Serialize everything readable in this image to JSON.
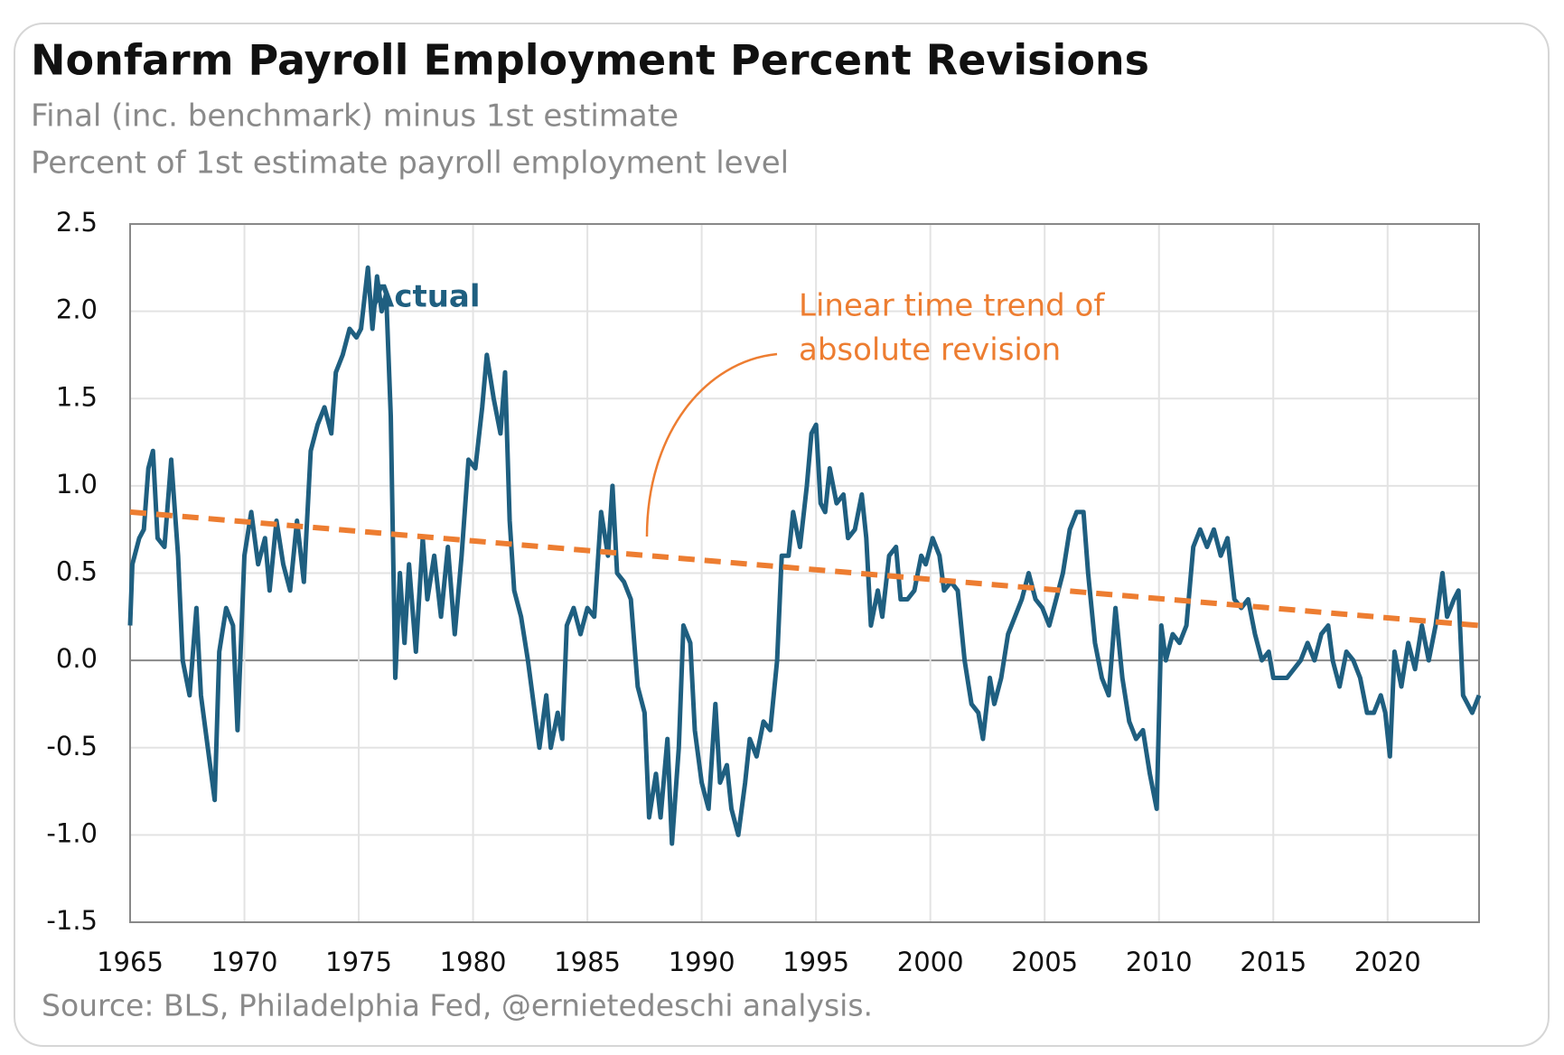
{
  "chart_data": {
    "type": "line",
    "title": "Nonfarm Payroll Employment Percent Revisions",
    "subtitle": [
      "Final (inc. benchmark) minus 1st estimate",
      "Percent of 1st estimate payroll employment level"
    ],
    "source": "Source: BLS, Philadelphia Fed, @ernietedeschi analysis.",
    "annotations": {
      "actual": "Actual",
      "trend": [
        "Linear time trend of",
        "absolute revision"
      ]
    },
    "xlim": [
      1965,
      2024
    ],
    "xticks": [
      1965,
      1970,
      1975,
      1980,
      1985,
      1990,
      1995,
      2000,
      2005,
      2010,
      2015,
      2020
    ],
    "ylim": [
      -1.5,
      2.5
    ],
    "yticks": [
      -1.5,
      {
        "value": -1,
        "label": "-1.0"
      },
      -0.5,
      {
        "value": 0,
        "label": "0.0"
      },
      0.5,
      {
        "value": 1,
        "label": "1.0"
      },
      1.5,
      {
        "value": 2,
        "label": "2.0"
      },
      2.5
    ],
    "grid": true,
    "series": [
      {
        "name": "Actual",
        "color": "#1f5f80",
        "x": [
          1965.0,
          1965.1,
          1965.4,
          1965.6,
          1965.8,
          1966.0,
          1966.2,
          1966.5,
          1966.8,
          1967.1,
          1967.3,
          1967.6,
          1967.9,
          1968.1,
          1968.4,
          1968.7,
          1968.9,
          1969.2,
          1969.5,
          1969.7,
          1970.0,
          1970.3,
          1970.6,
          1970.9,
          1971.1,
          1971.4,
          1971.7,
          1972.0,
          1972.3,
          1972.6,
          1972.9,
          1973.2,
          1973.5,
          1973.8,
          1974.0,
          1974.3,
          1974.6,
          1974.9,
          1975.1,
          1975.4,
          1975.6,
          1975.8,
          1976.0,
          1976.2,
          1976.4,
          1976.6,
          1976.8,
          1977.0,
          1977.2,
          1977.5,
          1977.8,
          1978.0,
          1978.3,
          1978.6,
          1978.9,
          1979.2,
          1979.5,
          1979.8,
          1980.1,
          1980.4,
          1980.6,
          1980.9,
          1981.2,
          1981.4,
          1981.6,
          1981.8,
          1982.1,
          1982.4,
          1982.7,
          1982.9,
          1983.2,
          1983.4,
          1983.7,
          1983.9,
          1984.1,
          1984.4,
          1984.7,
          1985.0,
          1985.3,
          1985.6,
          1985.9,
          1986.1,
          1986.3,
          1986.6,
          1986.9,
          1987.2,
          1987.5,
          1987.7,
          1988.0,
          1988.2,
          1988.5,
          1988.7,
          1989.0,
          1989.2,
          1989.5,
          1989.7,
          1990.0,
          1990.3,
          1990.6,
          1990.8,
          1991.1,
          1991.3,
          1991.6,
          1991.9,
          1992.1,
          1992.4,
          1992.7,
          1993.0,
          1993.3,
          1993.5,
          1993.8,
          1994.0,
          1994.3,
          1994.6,
          1994.8,
          1995.0,
          1995.2,
          1995.4,
          1995.6,
          1995.9,
          1996.2,
          1996.4,
          1996.7,
          1997.0,
          1997.2,
          1997.4,
          1997.7,
          1997.9,
          1998.2,
          1998.5,
          1998.7,
          1999.0,
          1999.3,
          1999.6,
          1999.8,
          2000.1,
          2000.4,
          2000.6,
          2000.9,
          2001.2,
          2001.5,
          2001.8,
          2002.1,
          2002.3,
          2002.6,
          2002.8,
          2003.1,
          2003.4,
          2003.7,
          2004.0,
          2004.3,
          2004.6,
          2004.9,
          2005.2,
          2005.5,
          2005.8,
          2006.1,
          2006.4,
          2006.7,
          2006.9,
          2007.2,
          2007.5,
          2007.8,
          2008.1,
          2008.4,
          2008.7,
          2009.0,
          2009.3,
          2009.6,
          2009.9,
          2010.1,
          2010.3,
          2010.6,
          2010.9,
          2011.2,
          2011.5,
          2011.8,
          2012.1,
          2012.4,
          2012.7,
          2013.0,
          2013.3,
          2013.6,
          2013.9,
          2014.2,
          2014.5,
          2014.8,
          2015.0,
          2015.3,
          2015.6,
          2015.9,
          2016.2,
          2016.5,
          2016.8,
          2017.1,
          2017.4,
          2017.6,
          2017.9,
          2018.2,
          2018.5,
          2018.8,
          2019.1,
          2019.4,
          2019.7,
          2019.9,
          2020.1,
          2020.3,
          2020.6,
          2020.9,
          2021.2,
          2021.5,
          2021.8,
          2022.1,
          2022.4,
          2022.6,
          2022.9,
          2023.1,
          2023.3,
          2023.5,
          2023.7,
          2024.0
        ],
        "values": [
          0.2,
          0.55,
          0.7,
          0.75,
          1.1,
          1.2,
          0.7,
          0.65,
          1.15,
          0.6,
          0.0,
          -0.2,
          0.3,
          -0.2,
          -0.5,
          -0.8,
          0.05,
          0.3,
          0.2,
          -0.4,
          0.6,
          0.85,
          0.55,
          0.7,
          0.4,
          0.8,
          0.55,
          0.4,
          0.8,
          0.45,
          1.2,
          1.35,
          1.45,
          1.3,
          1.65,
          1.75,
          1.9,
          1.85,
          1.9,
          2.25,
          1.9,
          2.2,
          2.0,
          2.1,
          1.4,
          -0.1,
          0.5,
          0.1,
          0.55,
          0.05,
          0.7,
          0.35,
          0.6,
          0.25,
          0.65,
          0.15,
          0.6,
          1.15,
          1.1,
          1.45,
          1.75,
          1.5,
          1.3,
          1.65,
          0.8,
          0.4,
          0.25,
          0.0,
          -0.3,
          -0.5,
          -0.2,
          -0.5,
          -0.3,
          -0.45,
          0.2,
          0.3,
          0.15,
          0.3,
          0.25,
          0.85,
          0.6,
          1.0,
          0.5,
          0.45,
          0.35,
          -0.15,
          -0.3,
          -0.9,
          -0.65,
          -0.9,
          -0.45,
          -1.05,
          -0.5,
          0.2,
          0.1,
          -0.4,
          -0.7,
          -0.85,
          -0.25,
          -0.7,
          -0.6,
          -0.85,
          -1.0,
          -0.7,
          -0.45,
          -0.55,
          -0.35,
          -0.4,
          0.0,
          0.6,
          0.6,
          0.85,
          0.65,
          1.0,
          1.3,
          1.35,
          0.9,
          0.85,
          1.1,
          0.9,
          0.95,
          0.7,
          0.75,
          0.95,
          0.7,
          0.2,
          0.4,
          0.25,
          0.6,
          0.65,
          0.35,
          0.35,
          0.4,
          0.6,
          0.55,
          0.7,
          0.6,
          0.4,
          0.45,
          0.4,
          0.0,
          -0.25,
          -0.3,
          -0.45,
          -0.1,
          -0.25,
          -0.1,
          0.15,
          0.25,
          0.35,
          0.5,
          0.35,
          0.3,
          0.2,
          0.35,
          0.5,
          0.75,
          0.85,
          0.85,
          0.5,
          0.1,
          -0.1,
          -0.2,
          0.3,
          -0.1,
          -0.35,
          -0.45,
          -0.4,
          -0.65,
          -0.85,
          0.2,
          0.0,
          0.15,
          0.1,
          0.2,
          0.65,
          0.75,
          0.65,
          0.75,
          0.6,
          0.7,
          0.35,
          0.3,
          0.35,
          0.15,
          0.0,
          0.05,
          -0.1,
          -0.1,
          -0.1,
          -0.05,
          0.0,
          0.1,
          0.0,
          0.15,
          0.2,
          0.0,
          -0.15,
          0.05,
          0.0,
          -0.1,
          -0.3,
          -0.3,
          -0.2,
          -0.3,
          -0.55,
          0.05,
          -0.15,
          0.1,
          -0.05,
          0.2,
          0.0,
          0.2,
          0.5,
          0.25,
          0.35,
          0.4,
          -0.2,
          -0.25,
          -0.3,
          -0.2
        ]
      },
      {
        "color": "#ed7d31",
        "dashed": true,
        "x": [
          1965,
          2024
        ],
        "values": [
          0.85,
          0.2
        ]
      }
    ]
  }
}
